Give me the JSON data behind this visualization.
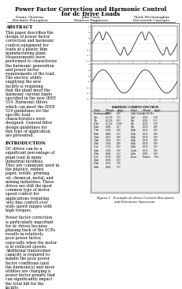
{
  "title_line1": "Power Factor Correction and Harmonic Control",
  "title_line2": "for dc Drive Loads",
  "authors": [
    {
      "name": "Danny Chatrian",
      "affil": "Klockner Pentaplast"
    },
    {
      "name": "John Tison",
      "affil": "Hanover Engineers"
    },
    {
      "name": "Mark McGranaghan",
      "affil": "Electrotek Concepts"
    }
  ],
  "abstract_title": "ABSTRACT",
  "abstract_text": "This paper describes the design of power factor correction and harmonic control equipment for loads at a plastic film manufacturing plant.  Measurements were performed to characterize the harmonic generation and power factor requirements of the load. The electric utility supplying the new facility is requiring that the plant meet the harmonic current limits specified in the new IEEE 519.  Harmonic filters which can meet the IEEE 519 guidelines for the specific load characteristics were designed.  General filter design guidelines for this type of application are presented.",
  "intro_title": "INTRODUCTION",
  "intro_text_p1": "DC drives can be a significant percentage of plant load in many industrial facilities.  They are commonly used in the plastics, rubber, paper, textile, printing, oil, chemical, metal, and mining industries.  These drives are still the most common type of motor speed control for applications requiring very fine control over wide speed ranges with high torques.",
  "intro_text_p2": "Power factor correction is particularly important for dc drives because phasing back of the SCRs results in relatively poor power factor, especially when the motor is at reduced speeds.  Additional transformer capacity is required to handle the poor power factor conditions (and the harmonics) and more utilities are charging a power factor penalty that can significantly impact the total bill for the facility.",
  "figure_caption_line1": "Figure 1.  Example dc Drive Current Waveform",
  "figure_caption_line2": "and Harmonic Spectrum",
  "bg_color": "#ffffff",
  "text_color": "#000000",
  "title_fontsize": 5.2,
  "body_fontsize": 3.5,
  "section_fontsize": 4.0,
  "author_fontsize": 3.2
}
